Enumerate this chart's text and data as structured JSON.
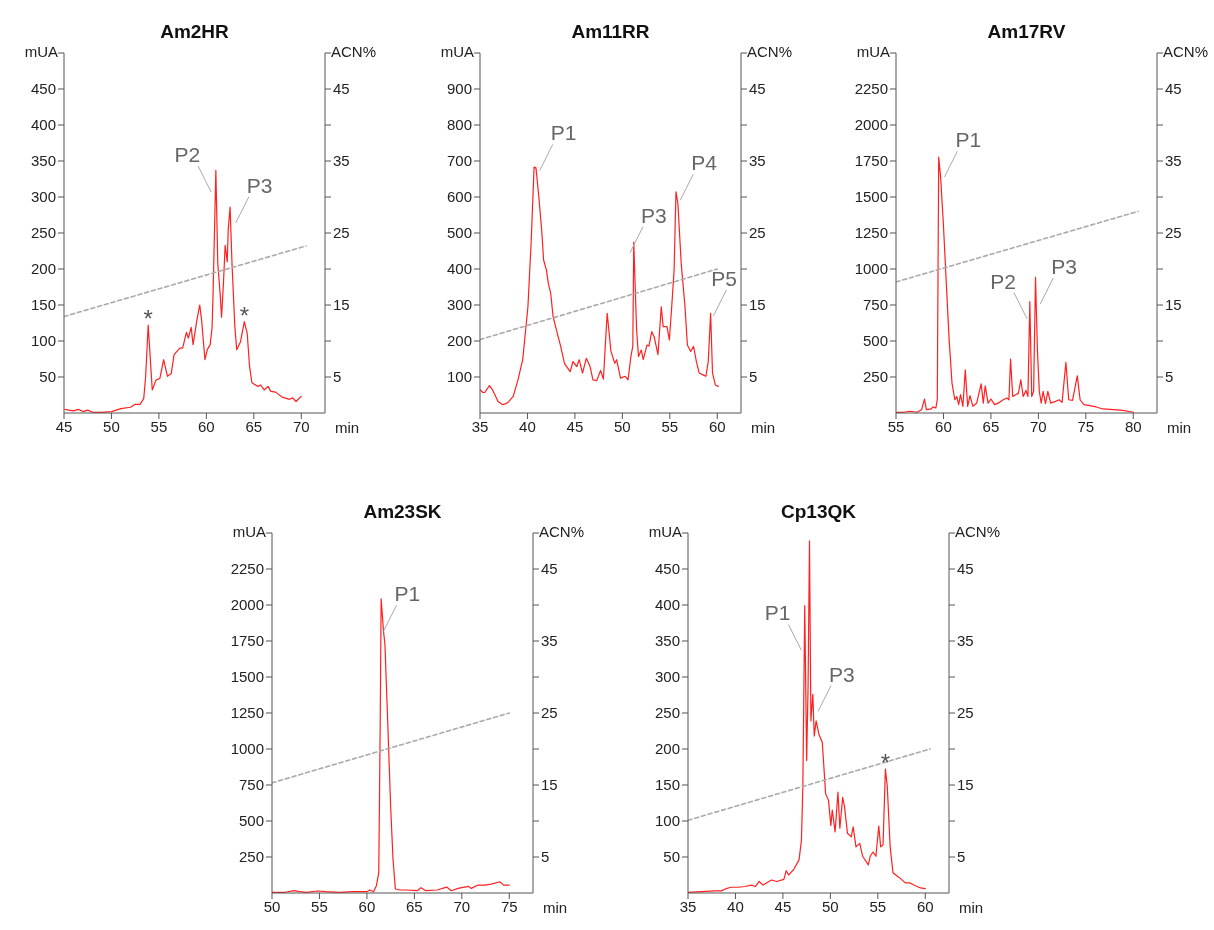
{
  "chart_data": [
    {
      "type": "line",
      "title": "Am2HR",
      "xlabel": "min",
      "ylabel": "mUA",
      "y2label": "ACN%",
      "marker": "none",
      "xlim": [
        45,
        72.5
      ],
      "xticks": [
        45,
        50,
        55,
        60,
        65,
        70
      ],
      "ylim": [
        0,
        500
      ],
      "yticks": [
        50,
        100,
        150,
        200,
        250,
        300,
        350,
        400,
        450,
        {
          "value": 500,
          "label": null
        }
      ],
      "y2lim": [
        0,
        50
      ],
      "y2ticks": [
        5,
        {
          "value": 10,
          "label": null
        },
        15,
        {
          "value": 20,
          "label": null
        },
        25,
        {
          "value": 30,
          "label": null
        },
        35,
        {
          "value": 40,
          "label": null
        },
        45,
        {
          "value": 50,
          "label": null
        }
      ],
      "series": [
        {
          "color": "#ff2020",
          "x": [
            45.1,
            45.5,
            46,
            46.5,
            47,
            47.5,
            48,
            49,
            50,
            51,
            52,
            52.5,
            53,
            53.4,
            53.6,
            53.87,
            54.3,
            54.7,
            55.1,
            55.5,
            55.9,
            56.3,
            56.6,
            57.2,
            57.5,
            57.9,
            58.1,
            58.4,
            58.6,
            59.0,
            59.3,
            59.5,
            59.85,
            60.1,
            60.4,
            60.6,
            60.7,
            61.0,
            61.2,
            61.45,
            61.6,
            61.8,
            61.98,
            62.2,
            62.3,
            62.5,
            62.7,
            63.0,
            63.2,
            63.6,
            64.0,
            64.3,
            64.55,
            64.8,
            65.4,
            65.7,
            66.1,
            66.5,
            66.8,
            67.3,
            68.0,
            68.75,
            69.1,
            69.45,
            70.0
          ],
          "values": [
            5,
            4,
            3,
            5,
            2,
            4,
            1,
            1,
            2,
            6,
            8,
            12,
            12,
            20,
            50,
            122,
            32,
            46,
            48,
            74,
            51,
            55,
            81,
            90,
            90,
            112,
            104,
            119,
            95,
            129,
            150,
            129,
            74,
            88,
            95,
            118,
            162,
            337,
            208,
            166,
            133,
            180,
            233,
            210,
            254,
            286,
            208,
            120,
            88,
            99,
            127,
            111,
            65,
            42,
            37,
            39,
            32,
            37,
            30,
            29,
            22,
            19,
            21,
            16,
            23
          ]
        },
        {
          "type": "line",
          "axis": "y2",
          "color": "#aaaaaa",
          "line_style": "dashed",
          "x": [
            45,
            70.5
          ],
          "values": [
            13.4,
            23.2
          ]
        }
      ],
      "annotations": [
        {
          "text": "*",
          "x": 53.87,
          "y": 122
        },
        {
          "text": "P2",
          "x": 60.5,
          "y": 307
        },
        {
          "text": "P3",
          "x": 63.1,
          "y": 264
        },
        {
          "text": "*",
          "x": 64.0,
          "y": 127
        }
      ]
    },
    {
      "type": "line",
      "title": "Am11RR",
      "xlabel": "min",
      "ylabel": "mUA",
      "y2label": "ACN%",
      "marker": "none",
      "xlim": [
        35,
        62.5
      ],
      "xticks": [
        35,
        40,
        45,
        50,
        55,
        60
      ],
      "ylim": [
        0,
        1000
      ],
      "yticks": [
        100,
        200,
        300,
        400,
        500,
        600,
        700,
        800,
        900,
        {
          "value": 1000,
          "label": null
        }
      ],
      "y2lim": [
        0,
        50
      ],
      "y2ticks": [
        5,
        {
          "value": 10,
          "label": null
        },
        15,
        {
          "value": 20,
          "label": null
        },
        25,
        {
          "value": 30,
          "label": null
        },
        35,
        {
          "value": 40,
          "label": null
        },
        45,
        {
          "value": 50,
          "label": null
        }
      ],
      "series": [
        {
          "color": "#ff2020",
          "x": [
            35.0,
            35.3,
            35.5,
            36.0,
            36.3,
            36.9,
            37.4,
            37.9,
            38.5,
            39.0,
            39.5,
            40.05,
            40.4,
            40.7,
            40.9,
            41.2,
            41.5,
            41.7,
            42.0,
            42.2,
            42.45,
            42.7,
            43.05,
            43.5,
            43.9,
            44.5,
            44.8,
            45.2,
            45.45,
            45.8,
            46.2,
            46.6,
            46.9,
            47.3,
            47.7,
            48.0,
            48.4,
            48.8,
            49.2,
            49.4,
            49.8,
            50.3,
            50.6,
            50.9,
            51.1,
            51.2,
            51.5,
            51.7,
            52.0,
            52.2,
            52.6,
            52.8,
            53.1,
            53.35,
            53.75,
            54.1,
            54.3,
            54.7,
            54.95,
            55.2,
            55.45,
            55.65,
            55.85,
            56.2,
            56.6,
            56.85,
            57.2,
            57.5,
            57.8,
            58.1,
            58.5,
            58.8,
            59.05,
            59.3,
            59.5,
            59.8,
            60.1
          ],
          "values": [
            65,
            57,
            57,
            76,
            65,
            32,
            23,
            28,
            46,
            92,
            148,
            295,
            480,
            683,
            681,
            600,
            508,
            425,
            397,
            360,
            332,
            268,
            231,
            185,
            138,
            115,
            143,
            129,
            148,
            111,
            152,
            129,
            92,
            90,
            118,
            94,
            277,
            171,
            138,
            148,
            97,
            102,
            92,
            157,
            185,
            475,
            231,
            157,
            175,
            148,
            189,
            186,
            226,
            212,
            162,
            295,
            240,
            240,
            203,
            295,
            397,
            614,
            582,
            415,
            295,
            189,
            171,
            185,
            143,
            111,
            106,
            102,
            143,
            277,
            111,
            78,
            74
          ]
        },
        {
          "type": "line",
          "axis": "y2",
          "color": "#aaaaaa",
          "line_style": "dashed",
          "x": [
            35,
            60
          ],
          "values": [
            10.2,
            20
          ]
        }
      ],
      "annotations": [
        {
          "text": "P1",
          "x": 41.3,
          "y": 674
        },
        {
          "text": "P3",
          "x": 50.8,
          "y": 445
        },
        {
          "text": "P4",
          "x": 56.1,
          "y": 591
        },
        {
          "text": "P5",
          "x": 59.6,
          "y": 270
        }
      ]
    },
    {
      "type": "line",
      "title": "Am17RV",
      "xlabel": "min",
      "ylabel": "mUA",
      "y2label": "ACN%",
      "marker": "none",
      "xlim": [
        55,
        82.5
      ],
      "xticks": [
        55,
        60,
        65,
        70,
        75,
        80
      ],
      "ylim": [
        0,
        2500
      ],
      "yticks": [
        250,
        500,
        750,
        1000,
        1250,
        1500,
        1750,
        2000,
        2250,
        {
          "value": 2500,
          "label": null
        }
      ],
      "y2lim": [
        0,
        50
      ],
      "y2ticks": [
        5,
        {
          "value": 10,
          "label": null
        },
        15,
        {
          "value": 20,
          "label": null
        },
        25,
        {
          "value": 30,
          "label": null
        },
        35,
        {
          "value": 40,
          "label": null
        },
        45,
        {
          "value": 50,
          "label": null
        }
      ],
      "series": [
        {
          "color": "#ff2020",
          "x": [
            55.0,
            55.8,
            56.5,
            57.2,
            57.7,
            58.0,
            58.2,
            58.7,
            58.9,
            59.2,
            59.35,
            59.5,
            59.7,
            59.99,
            60.3,
            60.6,
            60.9,
            61.2,
            61.4,
            61.6,
            61.8,
            62.05,
            62.3,
            62.55,
            62.8,
            63.1,
            63.5,
            63.97,
            64.2,
            64.4,
            64.7,
            65.0,
            65.4,
            65.9,
            66.3,
            66.7,
            66.9,
            67.07,
            67.3,
            67.9,
            68.15,
            68.4,
            68.7,
            68.9,
            69.1,
            69.3,
            69.5,
            69.7,
            69.9,
            70.1,
            70.3,
            70.5,
            70.75,
            71.0,
            71.3,
            71.8,
            72.2,
            72.5,
            72.9,
            73.2,
            73.6,
            74.1,
            74.4,
            74.8,
            75.4,
            76.1,
            76.8,
            77.9,
            78.9,
            80.0
          ],
          "values": [
            5,
            5,
            12,
            5,
            23,
            97,
            23,
            28,
            42,
            35,
            92,
            1777,
            1638,
            1315,
            900,
            508,
            208,
            92,
            115,
            58,
            127,
            46,
            300,
            46,
            120,
            46,
            69,
            203,
            69,
            189,
            69,
            97,
            58,
            74,
            92,
            104,
            92,
            374,
            115,
            138,
            231,
            115,
            157,
            115,
            773,
            115,
            150,
            942,
            439,
            150,
            69,
            150,
            65,
            150,
            69,
            81,
            92,
            74,
            351,
            92,
            88,
            258,
            92,
            58,
            51,
            42,
            28,
            23,
            18,
            5
          ]
        },
        {
          "type": "line",
          "axis": "y2",
          "color": "#aaaaaa",
          "line_style": "dashed",
          "x": [
            55,
            80.5
          ],
          "values": [
            18.2,
            28
          ]
        }
      ],
      "annotations": [
        {
          "text": "P1",
          "x": 60.1,
          "y": 1638
        },
        {
          "text": "P2",
          "x": 68.8,
          "y": 655
        },
        {
          "text": "P3",
          "x": 70.2,
          "y": 757
        }
      ]
    },
    {
      "type": "line",
      "title": "Am23SK",
      "xlabel": "min",
      "ylabel": "mUA",
      "y2label": "ACN%",
      "marker": "none",
      "xlim": [
        50,
        77.5
      ],
      "xticks": [
        50,
        55,
        60,
        65,
        70,
        75
      ],
      "ylim": [
        0,
        2500
      ],
      "yticks": [
        250,
        500,
        750,
        1000,
        1250,
        1500,
        1750,
        2000,
        2250,
        {
          "value": 2500,
          "label": null
        }
      ],
      "y2lim": [
        0,
        50
      ],
      "y2ticks": [
        5,
        {
          "value": 10,
          "label": null
        },
        15,
        {
          "value": 20,
          "label": null
        },
        25,
        {
          "value": 30,
          "label": null
        },
        35,
        {
          "value": 40,
          "label": null
        },
        45,
        {
          "value": 50,
          "label": null
        }
      ],
      "series": [
        {
          "color": "#ff2020",
          "x": [
            50.0,
            51.4,
            52.3,
            52.7,
            53.6,
            54.8,
            55.7,
            57.1,
            58.5,
            60.0,
            60.3,
            60.7,
            61.0,
            61.25,
            61.4,
            61.5,
            61.75,
            61.9,
            62.2,
            62.5,
            62.75,
            63.0,
            63.5,
            64.2,
            65.3,
            65.7,
            66.2,
            67.4,
            68.4,
            68.9,
            69.6,
            70.7,
            71.0,
            71.7,
            72.4,
            73.1,
            74.0,
            74.4,
            75.0
          ],
          "values": [
            5,
            5,
            16,
            11,
            5,
            14,
            9,
            5,
            9,
            9,
            21,
            9,
            51,
            142,
            1175,
            2043,
            1818,
            1726,
            1175,
            602,
            234,
            28,
            21,
            21,
            16,
            37,
            16,
            21,
            41,
            16,
            32,
            46,
            32,
            55,
            55,
            62,
            78,
            55,
            55
          ]
        },
        {
          "type": "line",
          "axis": "y2",
          "color": "#aaaaaa",
          "line_style": "dashed",
          "x": [
            50,
            75
          ],
          "values": [
            15.3,
            25
          ]
        }
      ],
      "annotations": [
        {
          "text": "P1",
          "x": 61.75,
          "y": 1818
        }
      ]
    },
    {
      "type": "line",
      "title": "Cp13QK",
      "xlabel": "min",
      "ylabel": "mUA",
      "y2label": "ACN%",
      "marker": "none",
      "xlim": [
        35,
        62.5
      ],
      "xticks": [
        35,
        40,
        45,
        50,
        55,
        60
      ],
      "ylim": [
        0,
        500
      ],
      "yticks": [
        50,
        100,
        150,
        200,
        250,
        300,
        350,
        400,
        450,
        {
          "value": 500,
          "label": null
        }
      ],
      "y2lim": [
        0,
        50
      ],
      "y2ticks": [
        5,
        {
          "value": 10,
          "label": null
        },
        15,
        {
          "value": 20,
          "label": null
        },
        25,
        {
          "value": 30,
          "label": null
        },
        35,
        {
          "value": 40,
          "label": null
        },
        45,
        {
          "value": 50,
          "label": null
        }
      ],
      "series": [
        {
          "color": "#ff2020",
          "x": [
            35.0,
            36.4,
            37.8,
            38.5,
            39.0,
            39.55,
            40.3,
            41.0,
            41.7,
            42.1,
            42.5,
            42.9,
            43.8,
            44.35,
            45.1,
            45.35,
            45.6,
            46.1,
            46.7,
            46.95,
            47.1,
            47.3,
            47.5,
            47.65,
            47.8,
            47.95,
            48.15,
            48.3,
            48.5,
            48.8,
            49.15,
            49.5,
            49.8,
            50.05,
            50.2,
            50.5,
            50.8,
            51.0,
            51.3,
            51.5,
            51.8,
            52.2,
            52.4,
            52.7,
            53.1,
            53.4,
            54.0,
            54.2,
            54.5,
            54.8,
            55.1,
            55.3,
            55.55,
            55.8,
            56.0,
            56.3,
            56.6,
            57.2,
            57.9,
            58.4,
            58.95,
            59.5,
            60.0
          ],
          "values": [
            1,
            2,
            3,
            3,
            6,
            8,
            8,
            9,
            11,
            9,
            16,
            11,
            18,
            16,
            19,
            31,
            25,
            32,
            46,
            73,
            147,
            399,
            184,
            285,
            489,
            239,
            276,
            218,
            239,
            220,
            209,
            138,
            129,
            94,
            115,
            85,
            140,
            90,
            133,
            119,
            83,
            78,
            92,
            64,
            69,
            51,
            39,
            51,
            57,
            51,
            93,
            64,
            67,
            172,
            147,
            64,
            28,
            22,
            14,
            14,
            10,
            7,
            6
          ]
        },
        {
          "type": "line",
          "axis": "y2",
          "color": "#aaaaaa",
          "line_style": "dashed",
          "x": [
            35,
            60.5
          ],
          "values": [
            10.1,
            20
          ]
        }
      ],
      "annotations": [
        {
          "text": "P1",
          "x": 46.95,
          "y": 337
        },
        {
          "text": "P3",
          "x": 48.7,
          "y": 252
        },
        {
          "text": "*",
          "x": 55.8,
          "y": 172
        }
      ]
    }
  ]
}
